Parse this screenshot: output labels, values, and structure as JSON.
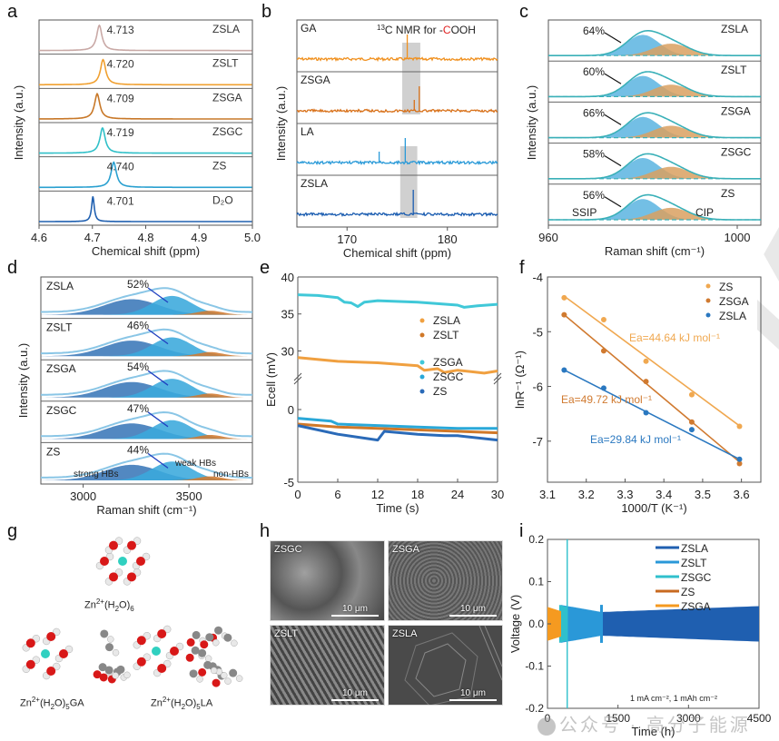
{
  "panels": {
    "a": {
      "label": "a"
    },
    "b": {
      "label": "b"
    },
    "c": {
      "label": "c"
    },
    "d": {
      "label": "d"
    },
    "e": {
      "label": "e"
    },
    "f": {
      "label": "f"
    },
    "g": {
      "label": "g"
    },
    "h": {
      "label": "h"
    },
    "i": {
      "label": "i"
    }
  },
  "chart_data": [
    {
      "id": "a",
      "type": "line",
      "title": "",
      "xlabel": "Chemical shift (ppm)",
      "ylabel": "Intensity (a.u.)",
      "xlim": [
        4.6,
        5.0
      ],
      "xticks": [
        "4.6",
        "4.7",
        "4.8",
        "4.9",
        "5.0"
      ],
      "series": [
        {
          "name": "ZSLA",
          "peak": 4.713,
          "peak_label": "4.713",
          "color": "#c9a9a6"
        },
        {
          "name": "ZSLT",
          "peak": 4.72,
          "peak_label": "4.720",
          "color": "#f0a030"
        },
        {
          "name": "ZSGA",
          "peak": 4.709,
          "peak_label": "4.709",
          "color": "#c87828"
        },
        {
          "name": "ZSGC",
          "peak": 4.719,
          "peak_label": "4.719",
          "color": "#30c0c8"
        },
        {
          "name": "ZS",
          "peak": 4.74,
          "peak_label": "4.740",
          "color": "#2aa0d0"
        },
        {
          "name": "D2O",
          "display": "D₂O",
          "peak": 4.701,
          "peak_label": "4.701",
          "color": "#2060b0"
        }
      ]
    },
    {
      "id": "b",
      "type": "line",
      "title": "13C NMR for -COOH",
      "title_parts": {
        "sup": "13",
        "pre": "C NMR for -",
        "red": "C",
        "post": "OOH"
      },
      "xlabel": "Chemical shift (ppm)",
      "ylabel": "Intensity (a.u.)",
      "xlim": [
        165,
        185
      ],
      "xticks": [
        "170",
        "180"
      ],
      "series": [
        {
          "name": "GA",
          "peaks": [
            176.0
          ],
          "highlight": [
            175.5,
            177.3
          ],
          "color": "#f0901e"
        },
        {
          "name": "ZSGA",
          "peaks": [
            176.7,
            177.2
          ],
          "highlight": [
            175.5,
            177.3
          ],
          "color": "#d87018"
        },
        {
          "name": "LA",
          "peaks": [
            173.2,
            175.8
          ],
          "highlight": [
            175.3,
            177.0
          ],
          "color": "#2a9ad8"
        },
        {
          "name": "ZSLA",
          "peaks": [
            176.6
          ],
          "highlight": [
            175.3,
            177.0
          ],
          "color": "#1a5cb0"
        }
      ]
    },
    {
      "id": "c",
      "type": "area",
      "xlabel": "Raman shift (cm⁻¹)",
      "ylabel": "Intensity (a.u.)",
      "xlim": [
        960,
        1005
      ],
      "xticks": [
        "960",
        "1000"
      ],
      "components": {
        "SSIP": {
          "center": 980,
          "color": "#5ab4e0"
        },
        "CIP": {
          "center": 985,
          "color": "#d9a060"
        }
      },
      "series": [
        {
          "name": "ZSLA",
          "ssip_pct": 64,
          "label": "64%"
        },
        {
          "name": "ZSLT",
          "ssip_pct": 60,
          "label": "60%"
        },
        {
          "name": "ZSGA",
          "ssip_pct": 66,
          "label": "66%"
        },
        {
          "name": "ZSGC",
          "ssip_pct": 58,
          "label": "58%"
        },
        {
          "name": "ZS",
          "ssip_pct": 56,
          "label": "56%"
        }
      ],
      "annotations": [
        "SSIP",
        "CIP"
      ]
    },
    {
      "id": "d",
      "type": "area",
      "xlabel": "Raman shift (cm⁻¹)",
      "ylabel": "Intensity (a.u.)",
      "xlim": [
        2800,
        3800
      ],
      "xticks": [
        "3000",
        "3500"
      ],
      "components": {
        "strong HBs": {
          "center": 3230,
          "color": "#3a78b8"
        },
        "weak HBs": {
          "center": 3420,
          "color": "#3aa8dc"
        },
        "non-HBs": {
          "center": 3600,
          "color": "#d07a30"
        }
      },
      "series": [
        {
          "name": "ZSLA",
          "pct": 52,
          "label": "52%"
        },
        {
          "name": "ZSLT",
          "pct": 46,
          "label": "46%"
        },
        {
          "name": "ZSGA",
          "pct": 54,
          "label": "54%"
        },
        {
          "name": "ZSGC",
          "pct": 47,
          "label": "47%"
        },
        {
          "name": "ZS",
          "pct": 44,
          "label": "44%"
        }
      ],
      "annotations": [
        "strong HBs",
        "weak HBs",
        "non-HBs"
      ]
    },
    {
      "id": "e",
      "type": "line",
      "xlabel": "Time (s)",
      "ylabel": "Ecell (mV)",
      "xlim": [
        0,
        30
      ],
      "xticks": [
        "0",
        "6",
        "12",
        "18",
        "24",
        "30"
      ],
      "yticks_upper": [
        "30",
        "35",
        "40"
      ],
      "yticks_lower": [
        "-5",
        "0"
      ],
      "axis_break": true,
      "series": [
        {
          "name": "ZSLA",
          "color": "#f0a040",
          "x": [
            0,
            6,
            12,
            18,
            19,
            21,
            22,
            24,
            26,
            28,
            30
          ],
          "y": [
            29.1,
            28.6,
            28.4,
            28.0,
            27.4,
            27.6,
            27.1,
            27.4,
            27.2,
            27.0,
            27.3
          ]
        },
        {
          "name": "ZSLT",
          "color": "#d07828",
          "x": [
            0,
            6,
            12,
            18,
            24,
            30
          ],
          "y": [
            -1.0,
            -1.2,
            -1.3,
            -1.4,
            -1.5,
            -1.6
          ]
        },
        {
          "name": "ZSGA",
          "color": "#40c8d8",
          "x": [
            0,
            3,
            6,
            7,
            8,
            9,
            10,
            12,
            18,
            24,
            25,
            27,
            30
          ],
          "y": [
            37.6,
            37.5,
            37.2,
            36.6,
            36.5,
            36.0,
            36.6,
            36.8,
            36.6,
            36.2,
            35.9,
            36.1,
            36.3
          ]
        },
        {
          "name": "ZSGC",
          "color": "#2aa8d8",
          "x": [
            0,
            5,
            6,
            12,
            18,
            24,
            30
          ],
          "y": [
            -0.6,
            -0.8,
            -1.0,
            -1.1,
            -1.2,
            -1.3,
            -1.3
          ]
        },
        {
          "name": "ZS",
          "color": "#2a6ab8",
          "x": [
            0,
            6,
            12,
            13,
            18,
            22,
            24,
            30
          ],
          "y": [
            -1.1,
            -1.7,
            -2.1,
            -1.5,
            -1.7,
            -1.8,
            -1.8,
            -2.1
          ]
        }
      ]
    },
    {
      "id": "f",
      "type": "scatter",
      "xlabel": "1000/T (K⁻¹)",
      "ylabel": "lnR⁻¹ (Ω⁻¹)",
      "xlim": [
        3.1,
        3.65
      ],
      "ylim": [
        -7.75,
        -4
      ],
      "xticks": [
        "3.1",
        "3.2",
        "3.3",
        "3.4",
        "3.5",
        "3.6"
      ],
      "yticks": [
        "-7",
        "-6",
        "-5",
        "-4"
      ],
      "series": [
        {
          "name": "ZS",
          "color": "#f0a850",
          "x": [
            3.143,
            3.245,
            3.354,
            3.472,
            3.595
          ],
          "y": [
            -4.38,
            -4.78,
            -5.54,
            -6.15,
            -6.73
          ],
          "fit": [
            [
              3.143,
              -4.35
            ],
            [
              3.595,
              -6.72
            ]
          ],
          "annotation": "Ea=44.64 kJ mol⁻¹"
        },
        {
          "name": "ZSGA",
          "color": "#d07a30",
          "x": [
            3.143,
            3.245,
            3.354,
            3.472,
            3.595
          ],
          "y": [
            -4.69,
            -5.35,
            -5.91,
            -6.65,
            -7.41
          ],
          "fit": [
            [
              3.143,
              -4.69
            ],
            [
              3.595,
              -7.38
            ]
          ],
          "annotation": "Ea=49.72 kJ mol⁻¹"
        },
        {
          "name": "ZSLA",
          "color": "#2a78c0",
          "x": [
            3.143,
            3.245,
            3.354,
            3.472,
            3.595
          ],
          "y": [
            -5.7,
            -6.03,
            -6.48,
            -6.79,
            -7.33
          ],
          "fit": [
            [
              3.143,
              -5.7
            ],
            [
              3.595,
              -7.33
            ]
          ],
          "annotation": "Ea=29.84 kJ mol⁻¹"
        }
      ]
    },
    {
      "id": "i",
      "type": "area",
      "xlabel": "Time (h)",
      "ylabel": "Voltage (V)",
      "xlim": [
        0,
        4500
      ],
      "ylim": [
        -0.2,
        0.2
      ],
      "xticks": [
        "0",
        "1500",
        "3000",
        "4500"
      ],
      "yticks": [
        "-0.2",
        "-0.1",
        "0.0",
        "0.1",
        "0.2"
      ],
      "condition": "1 mA cm⁻², 1 mAh cm⁻²",
      "series": [
        {
          "name": "ZSLA",
          "color": "#1f5fb0",
          "t_end": 4500,
          "amp_start": 0.03,
          "amp_end": 0.042
        },
        {
          "name": "ZSLT",
          "color": "#2a98d8",
          "t_end": 1150,
          "amp_start": 0.045,
          "amp_end": 0.028
        },
        {
          "name": "ZSGC",
          "color": "#30c0cc",
          "t_end": 400,
          "amp_start": 0.045,
          "amp_end": 0.04
        },
        {
          "name": "ZS",
          "color": "#c86a20",
          "t_end": 260,
          "amp_start": 0.04,
          "amp_end": 0.03
        },
        {
          "name": "ZSGA",
          "color": "#f59a20",
          "t_end": 290,
          "amp_start": 0.04,
          "amp_end": 0.035
        }
      ]
    }
  ],
  "structures": {
    "captions": [
      {
        "base": "Zn",
        "sup": "2+",
        "mid": "(H",
        "sub1": "2",
        "mid2": "O)",
        "sub2": "6",
        "tail": ""
      },
      {
        "base": "Zn",
        "sup": "2+",
        "mid": "(H",
        "sub1": "2",
        "mid2": "O)",
        "sub2": "5",
        "tail": "GA"
      },
      {
        "base": "Zn",
        "sup": "2+",
        "mid": "(H",
        "sub1": "2",
        "mid2": "O)",
        "sub2": "5",
        "tail": "LA"
      }
    ]
  },
  "sem_images": [
    {
      "label": "ZSGC",
      "scale": "10 μm"
    },
    {
      "label": "ZSGA",
      "scale": "10 μm"
    },
    {
      "label": "ZSLT",
      "scale": "10 μm"
    },
    {
      "label": "ZSLA",
      "scale": "10 μm"
    }
  ],
  "watermark": {
    "text": "公众号 · 高分子能源"
  }
}
